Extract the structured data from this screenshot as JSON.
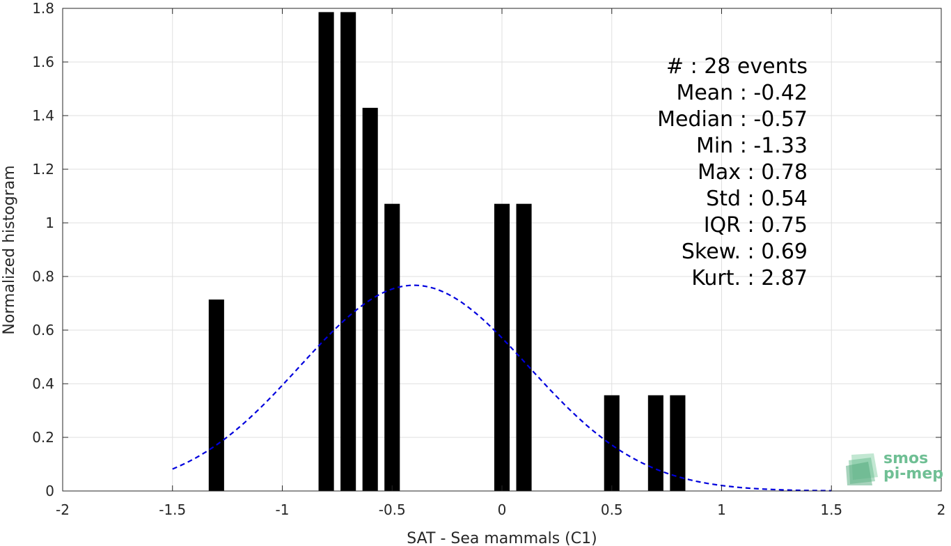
{
  "chart_data": {
    "type": "bar",
    "xlabel": "SAT - Sea mammals (C1)",
    "ylabel": "Normalized histogram",
    "xlim": [
      -2,
      2
    ],
    "ylim": [
      0,
      1.8
    ],
    "xticks": [
      -2,
      -1.5,
      -1,
      -0.5,
      0,
      0.5,
      1,
      1.5,
      2
    ],
    "xtick_labels": [
      "-2",
      "-1.5",
      "-1",
      "-0.5",
      "0",
      "0.5",
      "1",
      "1.5",
      "2"
    ],
    "yticks": [
      0,
      0.2,
      0.4,
      0.6,
      0.8,
      1,
      1.2,
      1.4,
      1.6,
      1.8
    ],
    "ytick_labels": [
      "0",
      "0.2",
      "0.4",
      "0.6",
      "0.8",
      "1",
      "1.2",
      "1.4",
      "1.6",
      "1.8"
    ],
    "grid": true,
    "bar_width": 0.07,
    "bar_color": "#000000",
    "bars": [
      {
        "x": -1.3,
        "value": 0.714
      },
      {
        "x": -0.8,
        "value": 1.786
      },
      {
        "x": -0.7,
        "value": 1.786
      },
      {
        "x": -0.6,
        "value": 1.429
      },
      {
        "x": -0.5,
        "value": 1.071
      },
      {
        "x": 0.0,
        "value": 1.071
      },
      {
        "x": 0.1,
        "value": 1.071
      },
      {
        "x": 0.5,
        "value": 0.357
      },
      {
        "x": 0.7,
        "value": 0.357
      },
      {
        "x": 0.8,
        "value": 0.357
      }
    ],
    "fit_curve": {
      "style": "dashed",
      "color": "#0000dd",
      "mean": -0.4,
      "std": 0.52,
      "x_range": [
        -1.5,
        1.5
      ]
    },
    "stats": [
      {
        "label": "#  : 28 events"
      },
      {
        "label": "Mean : -0.42"
      },
      {
        "label": "Median : -0.57"
      },
      {
        "label": "Min : -1.33"
      },
      {
        "label": "Max : 0.78"
      },
      {
        "label": "Std : 0.54"
      },
      {
        "label": "IQR : 0.75"
      },
      {
        "label": "Skew. : 0.69"
      },
      {
        "label": "Kurt. : 2.87"
      }
    ]
  },
  "logo": {
    "line1": "smos",
    "line2": "pi-mep",
    "color": "#6fbf94"
  }
}
